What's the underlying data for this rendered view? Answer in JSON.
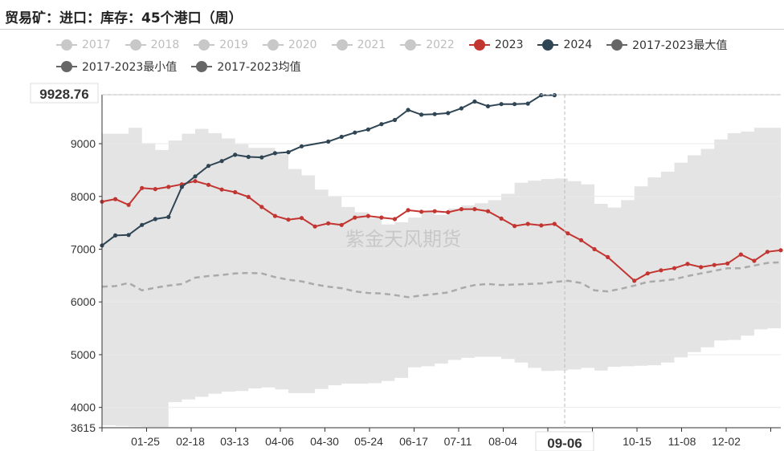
{
  "title": "贸易矿：进口：库存：45个港口（周）",
  "watermark": "紫金天风期货",
  "tooltip": {
    "y_value": "9928.76",
    "x_value": "09-06"
  },
  "legend": [
    {
      "name": "2017",
      "color": "#c8c8c8",
      "active": false
    },
    {
      "name": "2018",
      "color": "#c8c8c8",
      "active": false
    },
    {
      "name": "2019",
      "color": "#c8c8c8",
      "active": false
    },
    {
      "name": "2020",
      "color": "#c8c8c8",
      "active": false
    },
    {
      "name": "2021",
      "color": "#c8c8c8",
      "active": false
    },
    {
      "name": "2022",
      "color": "#c8c8c8",
      "active": false
    },
    {
      "name": "2023",
      "color": "#c23531",
      "active": true
    },
    {
      "name": "2024",
      "color": "#2f4554",
      "active": true
    },
    {
      "name": "2017-2023最大值",
      "color": "#666666",
      "active": true
    },
    {
      "name": "2017-2023最小值",
      "color": "#666666",
      "active": true
    },
    {
      "name": "2017-2023均值",
      "color": "#666666",
      "active": true
    }
  ],
  "chart_data": {
    "type": "line",
    "x_ticks": [
      "01-25",
      "02-18",
      "03-13",
      "04-06",
      "04-30",
      "05-24",
      "06-17",
      "07-11",
      "08-04",
      "09-06",
      "10-15",
      "11-08",
      "12-02"
    ],
    "y_ticks": [
      3615,
      4000,
      5000,
      6000,
      7000,
      8000,
      9000,
      9928.76
    ],
    "ylim": [
      3615,
      9928.76
    ],
    "series": [
      {
        "name": "2023",
        "color": "#c23531",
        "values": [
          7900,
          7950,
          7840,
          8160,
          8140,
          8180,
          8230,
          8290,
          8220,
          8130,
          8080,
          7990,
          7800,
          7630,
          7560,
          7590,
          7430,
          7490,
          7460,
          7600,
          7630,
          7600,
          7570,
          7740,
          7710,
          7720,
          7700,
          7760,
          7760,
          7720,
          7580,
          7440,
          7480,
          7450,
          7480,
          7300,
          7170,
          7000,
          6850,
          null,
          6400,
          6540,
          6600,
          6640,
          6720,
          6660,
          6700,
          6730,
          6900,
          6780,
          6950,
          6980
        ]
      },
      {
        "name": "2024",
        "color": "#2f4554",
        "values": [
          7070,
          7260,
          7270,
          7460,
          7570,
          7610,
          8180,
          8380,
          8580,
          8670,
          8790,
          8750,
          8740,
          8820,
          8840,
          8950,
          null,
          9040,
          9130,
          9210,
          9270,
          9370,
          9450,
          9640,
          9550,
          9560,
          9580,
          9670,
          9800,
          9710,
          9750,
          9750,
          9760,
          9920,
          9920
        ]
      },
      {
        "name": "2017-2023最大值",
        "color": "#e6e6e6",
        "values": [
          9190,
          9190,
          9300,
          9010,
          8880,
          9060,
          9190,
          9280,
          9200,
          9100,
          8990,
          8920,
          8920,
          8800,
          8520,
          8400,
          8130,
          8000,
          7800,
          7700,
          7590,
          7470,
          7510,
          7600,
          7720,
          7650,
          7770,
          7830,
          7870,
          7930,
          8050,
          8260,
          8300,
          8330,
          8340,
          8290,
          8230,
          7860,
          7790,
          7930,
          8190,
          8360,
          8470,
          8640,
          8780,
          8900,
          9080,
          9200,
          9230,
          9300,
          9300,
          9170
        ]
      },
      {
        "name": "2017-2023最小值",
        "color": "#e6e6e6",
        "values": [
          3660,
          3650,
          3640,
          3630,
          3630,
          4100,
          4150,
          4200,
          4260,
          4300,
          4310,
          4360,
          4380,
          4340,
          4270,
          4270,
          4350,
          4420,
          4450,
          4450,
          4460,
          4500,
          4560,
          4760,
          4780,
          4830,
          4900,
          4940,
          4960,
          4960,
          4920,
          4850,
          4750,
          4690,
          4700,
          4720,
          4750,
          4700,
          4770,
          4780,
          4790,
          4800,
          4850,
          4950,
          5050,
          5140,
          5270,
          5280,
          5360,
          5480,
          5500,
          5550
        ]
      },
      {
        "name": "2017-2023均值",
        "color": "#aaaaaa",
        "values": [
          6290,
          6300,
          6360,
          6220,
          6270,
          6310,
          6340,
          6460,
          6490,
          6510,
          6540,
          6550,
          6540,
          6470,
          6420,
          6390,
          6330,
          6290,
          6260,
          6200,
          6170,
          6160,
          6130,
          6090,
          6120,
          6150,
          6180,
          6260,
          6320,
          6340,
          6320,
          6330,
          6340,
          6350,
          6380,
          6400,
          6360,
          6220,
          6200,
          6250,
          6310,
          6380,
          6400,
          6430,
          6490,
          6540,
          6590,
          6640,
          6640,
          6690,
          6740,
          6750
        ]
      }
    ]
  }
}
